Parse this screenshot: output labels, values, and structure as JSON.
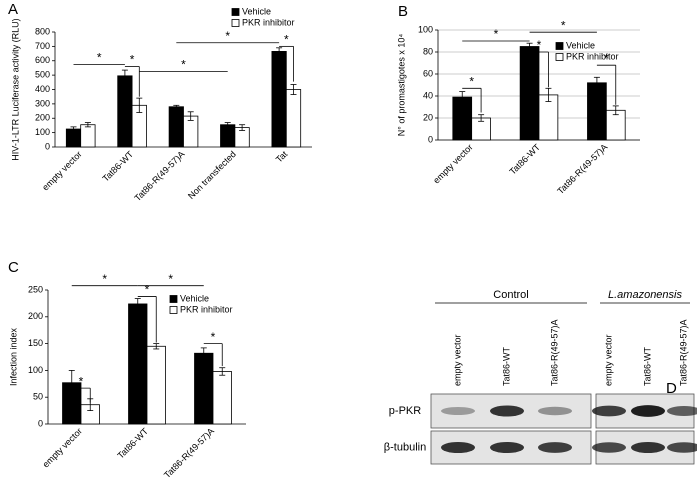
{
  "chart_data": [
    {
      "type": "bar",
      "panel": "A",
      "y_label": "HIV-1-LTR Luciferase activity (RLU)",
      "categories": [
        "empty vector",
        "Tat86-WT",
        "Tat86-R(49-57)A",
        "Non transfected",
        "Tat"
      ],
      "series": [
        {
          "name": "Vehicle",
          "color": "#000000",
          "values": [
            125,
            495,
            280,
            155,
            665
          ],
          "errors": [
            15,
            40,
            10,
            15,
            25
          ]
        },
        {
          "name": "PKR inhibitor",
          "color": "#ffffff",
          "values": [
            155,
            290,
            215,
            135,
            400
          ],
          "errors": [
            15,
            50,
            30,
            20,
            35
          ]
        }
      ],
      "ylim": [
        0,
        800
      ],
      "yticks": [
        0,
        100,
        200,
        300,
        400,
        500,
        600,
        700,
        800
      ],
      "legend": "upper right",
      "annotations": [
        "*",
        "*",
        "*",
        "*",
        "*"
      ]
    },
    {
      "type": "bar",
      "panel": "B",
      "y_label": "N° of  promastigotes x 10⁴",
      "categories": [
        "empty vector",
        "Tat86-WT",
        "Tat86-R(49-57)A"
      ],
      "series": [
        {
          "name": "Vehicle",
          "color": "#000000",
          "values": [
            39,
            85,
            52
          ],
          "errors": [
            5,
            3,
            5
          ]
        },
        {
          "name": "PKR inhibitor",
          "color": "#ffffff",
          "values": [
            20,
            41,
            27
          ],
          "errors": [
            3,
            6,
            4
          ]
        }
      ],
      "ylim": [
        0,
        100
      ],
      "yticks": [
        0,
        20,
        40,
        60,
        80,
        100
      ],
      "grid": true,
      "legend": "right",
      "annotations": [
        "*",
        "*",
        "*",
        "*",
        "*"
      ]
    },
    {
      "type": "bar",
      "panel": "C",
      "y_label": "Infection index",
      "categories": [
        "empty vector",
        "Tat86-WT",
        "Tat86-R(49-57)A"
      ],
      "series": [
        {
          "name": "Vehicle",
          "color": "#000000",
          "values": [
            77,
            224,
            132
          ],
          "errors": [
            23,
            10,
            10
          ]
        },
        {
          "name": "PKR inhibitor",
          "color": "#ffffff",
          "values": [
            36,
            145,
            98
          ],
          "errors": [
            11,
            5,
            7
          ]
        }
      ],
      "ylim": [
        0,
        250
      ],
      "yticks": [
        0,
        50,
        100,
        150,
        200,
        250
      ],
      "legend": "upper right",
      "annotations": [
        "*",
        "*",
        "*",
        "*",
        "*"
      ]
    }
  ],
  "blot": {
    "panel": "D",
    "groups": [
      {
        "name": "Control",
        "lanes": [
          "empty vector",
          "Tat86-WT",
          "Tat86-R(49-57)A"
        ]
      },
      {
        "name": "L.amazonensis",
        "lanes": [
          "empty vector",
          "Tat86-WT",
          "Tat86-R(49-57)A"
        ]
      }
    ],
    "rows": [
      "p-PKR",
      "β-tubulin"
    ]
  }
}
